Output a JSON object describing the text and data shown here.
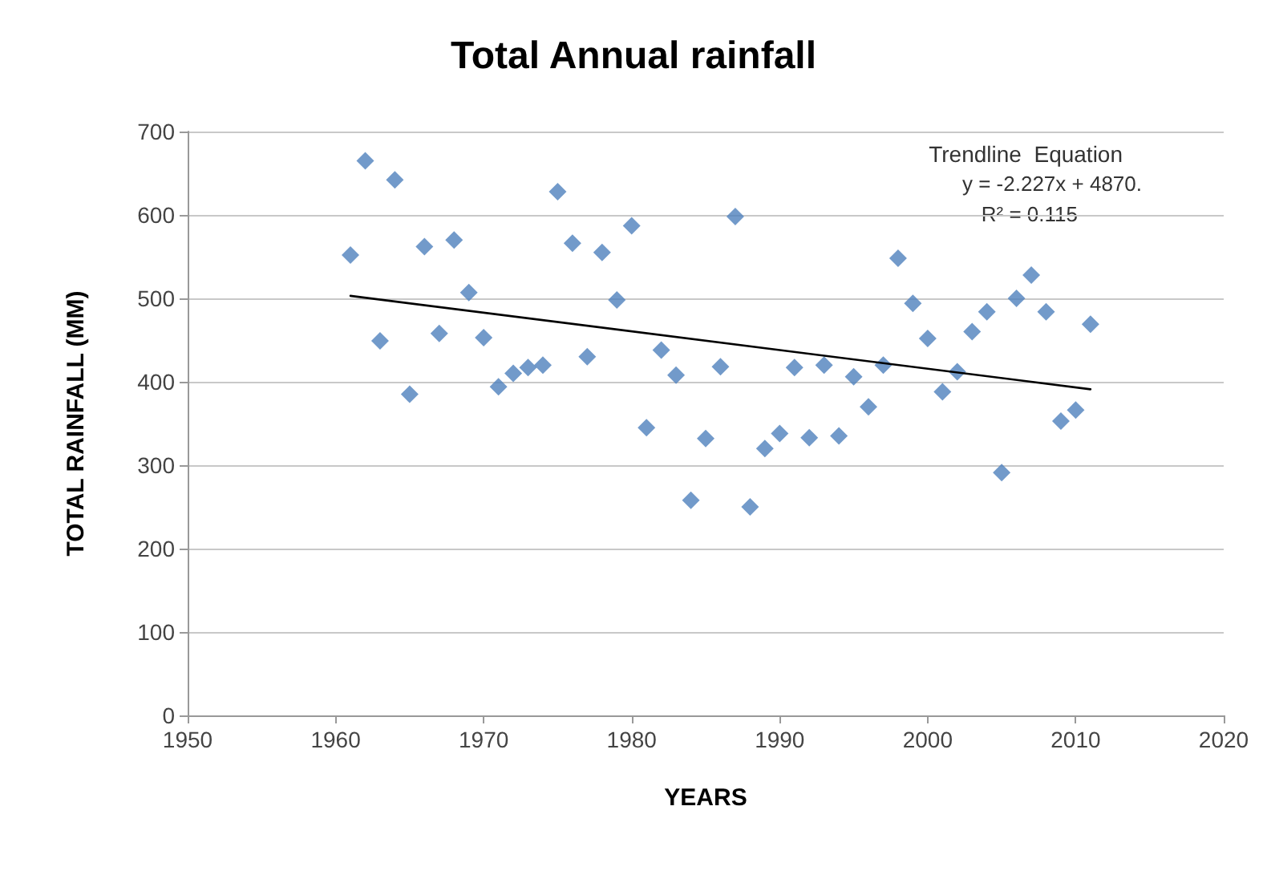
{
  "chart_data": {
    "type": "scatter",
    "title": "Total Annual rainfall",
    "xlabel": "YEARS",
    "ylabel": "TOTAL RAINFALL (MM)",
    "annotations": [
      "Trendline  Equation",
      "y = -2.227x + 4870.",
      "R² = 0.115"
    ],
    "x": [
      1961,
      1962,
      1963,
      1964,
      1965,
      1966,
      1967,
      1968,
      1969,
      1970,
      1971,
      1972,
      1973,
      1974,
      1975,
      1976,
      1977,
      1978,
      1979,
      1980,
      1981,
      1982,
      1983,
      1984,
      1985,
      1986,
      1987,
      1988,
      1989,
      1990,
      1991,
      1992,
      1993,
      1994,
      1995,
      1996,
      1997,
      1998,
      1999,
      2000,
      2001,
      2002,
      2003,
      2004,
      2005,
      2006,
      2007,
      2008,
      2009,
      2010,
      2011
    ],
    "series": [
      {
        "color": "#4f81bd",
        "marker": "diamond",
        "values": [
          552,
          665,
          449,
          642,
          385,
          562,
          458,
          570,
          507,
          453,
          394,
          410,
          417,
          420,
          628,
          566,
          430,
          555,
          498,
          587,
          345,
          438,
          408,
          258,
          332,
          418,
          598,
          250,
          320,
          338,
          417,
          333,
          420,
          335,
          406,
          370,
          420,
          548,
          494,
          452,
          388,
          412,
          460,
          484,
          291,
          500,
          528,
          484,
          353,
          366,
          469
        ]
      },
      {
        "type": "line",
        "color": "#000000",
        "marker": "none",
        "line_style": "solid",
        "x": [
          1961,
          2011
        ],
        "values": [
          503,
          391
        ]
      }
    ],
    "xlim": [
      1950,
      2020
    ],
    "xticks": [
      1950,
      1960,
      1970,
      1980,
      1990,
      2000,
      2010,
      2020
    ],
    "ylim": [
      0,
      700
    ],
    "yticks": [
      0,
      100,
      200,
      300,
      400,
      500,
      600,
      700
    ],
    "grid": "y"
  }
}
